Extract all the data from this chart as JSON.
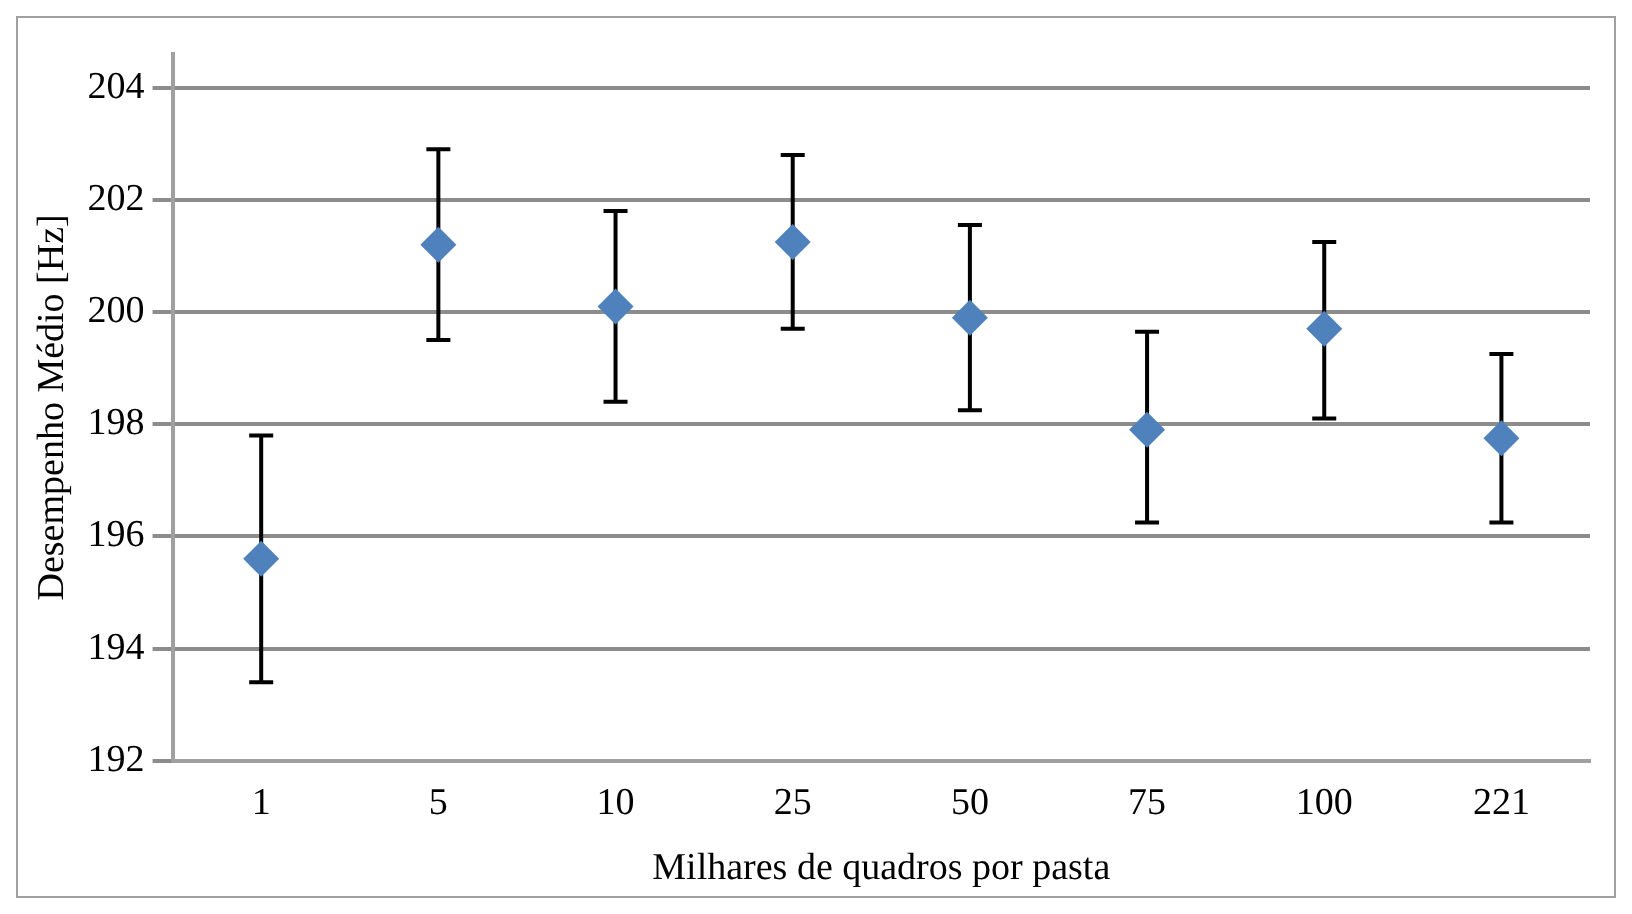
{
  "chart_data": {
    "type": "scatter",
    "xlabel": "Milhares de quadros por pasta",
    "ylabel": "Desempenho Médio [Hz]",
    "categories": [
      "1",
      "5",
      "10",
      "25",
      "50",
      "75",
      "100",
      "221"
    ],
    "series": [
      {
        "color": "#4f81bd",
        "values": [
          195.6,
          201.2,
          200.1,
          201.25,
          199.9,
          197.9,
          199.7,
          197.75
        ],
        "errors": [
          [
            193.4,
            197.8
          ],
          [
            199.5,
            202.9
          ],
          [
            198.4,
            201.8
          ],
          [
            199.7,
            202.8
          ],
          [
            198.25,
            201.55
          ],
          [
            196.25,
            199.65
          ],
          [
            198.1,
            201.25
          ],
          [
            196.25,
            199.25
          ]
        ]
      }
    ],
    "ylim": [
      192,
      204.6
    ],
    "yticks": [
      192,
      194,
      196,
      198,
      200,
      202,
      204
    ],
    "grid": "y",
    "legend": false,
    "marker": "diamond"
  }
}
